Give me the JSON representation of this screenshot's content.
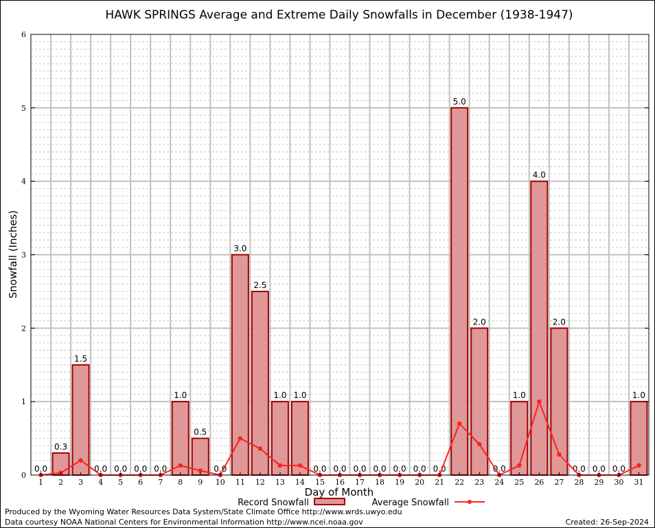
{
  "chart_data": {
    "type": "bar",
    "title": "HAWK SPRINGS Average and Extreme Daily Snowfalls in December (1938-1947)",
    "xlabel": "Day of Month",
    "ylabel": "Snowfall (Inches)",
    "ylim": [
      0,
      6
    ],
    "yticks": [
      "0",
      "1",
      "2",
      "3",
      "4",
      "5",
      "6"
    ],
    "categories": [
      "1",
      "2",
      "3",
      "4",
      "5",
      "6",
      "7",
      "8",
      "9",
      "10",
      "11",
      "12",
      "13",
      "14",
      "15",
      "16",
      "17",
      "18",
      "19",
      "20",
      "21",
      "22",
      "23",
      "24",
      "25",
      "26",
      "27",
      "28",
      "29",
      "30",
      "31"
    ],
    "series": [
      {
        "name": "Record Snowfall",
        "type": "bar",
        "values": [
          0,
          0.3,
          1.5,
          0,
          0,
          0,
          0,
          1.0,
          0.5,
          0,
          3.0,
          2.5,
          1.0,
          1.0,
          0,
          0,
          0,
          0,
          0,
          0,
          0,
          5.0,
          2.0,
          0,
          1.0,
          4.0,
          2.0,
          0,
          0,
          0,
          1.0
        ],
        "labels": [
          "0.0",
          "0.3",
          "1.5",
          "0.0",
          "0.0",
          "0.0",
          "0.0",
          "1.0",
          "0.5",
          "0.0",
          "3.0",
          "2.5",
          "1.0",
          "1.0",
          "0.0",
          "0.0",
          "0.0",
          "0.0",
          "0.0",
          "0.0",
          "0.0",
          "5.0",
          "2.0",
          "0.0",
          "1.0",
          "4.0",
          "2.0",
          "0.0",
          "0.0",
          "0.0",
          "1.0"
        ],
        "color": "#a00000"
      },
      {
        "name": "Average Snowfall",
        "type": "line",
        "values": [
          0,
          0.03,
          0.2,
          0,
          0,
          0,
          0,
          0.13,
          0.06,
          0,
          0.5,
          0.36,
          0.13,
          0.13,
          0,
          0,
          0,
          0,
          0,
          0,
          0,
          0.7,
          0.42,
          0,
          0.13,
          1.0,
          0.28,
          0,
          0,
          0,
          0.13
        ],
        "color": "#ff2020"
      }
    ],
    "grid": true,
    "legend": "bottom-center"
  },
  "footer": {
    "produced_by": "Produced by the Wyoming Water Resources Data System/State Climate Office http://www.wrds.uwyo.edu",
    "courtesy": "Data courtesy NOAA National Centers for Environmental Information http://www.ncei.noaa.gov",
    "created": "Created: 26-Sep-2024"
  }
}
